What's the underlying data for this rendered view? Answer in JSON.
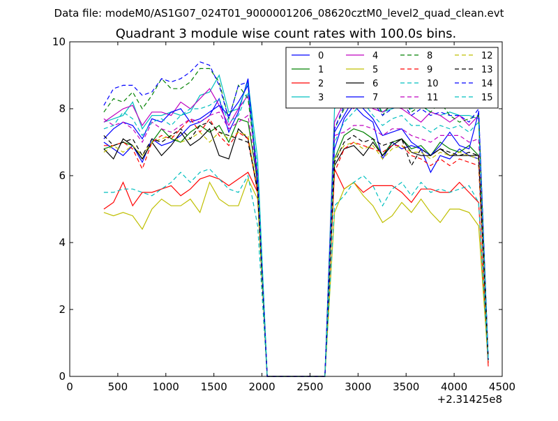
{
  "chart_data": {
    "type": "line",
    "suptitle": "Data file: modeM0/AS1G07_024T01_9000001206_08620cztM0_level2_quad_clean.evt",
    "title": "Quadrant 3 module wise count rates with 100.0s bins.",
    "xlabel": "",
    "ylabel": "",
    "xlim": [
      0,
      4500
    ],
    "ylim": [
      0,
      10
    ],
    "x_offset_label": "+2.31425e8",
    "x_ticks": [
      0,
      500,
      1000,
      1500,
      2000,
      2500,
      3000,
      3500,
      4000,
      4500
    ],
    "y_ticks": [
      0,
      2,
      4,
      6,
      8,
      10
    ],
    "x_tick_labels": [
      "0",
      "500",
      "1000",
      "1500",
      "2000",
      "2500",
      "3000",
      "3500",
      "4000",
      "4500"
    ],
    "y_tick_labels": [
      "0",
      "2",
      "4",
      "6",
      "8",
      "10"
    ],
    "grid": false,
    "legend_position": "top-right",
    "x": [
      355,
      455,
      555,
      655,
      755,
      855,
      955,
      1055,
      1155,
      1255,
      1355,
      1455,
      1555,
      1655,
      1755,
      1855,
      1955,
      2055,
      2155,
      2255,
      2355,
      2455,
      2555,
      2655,
      2755,
      2855,
      2955,
      3055,
      3155,
      3255,
      3355,
      3455,
      3555,
      3655,
      3755,
      3855,
      3955,
      4055,
      4155,
      4255,
      4355
    ],
    "series": [
      {
        "name": "0",
        "color": "#0000ff",
        "dash": "solid",
        "values": [
          7.0,
          6.8,
          6.6,
          6.9,
          6.4,
          7.1,
          6.9,
          7.0,
          7.2,
          7.5,
          7.6,
          7.8,
          8.3,
          7.3,
          7.9,
          8.9,
          5.6,
          0,
          0,
          0,
          0,
          0,
          0,
          0,
          6.8,
          7.7,
          8.1,
          7.8,
          7.6,
          6.5,
          7.0,
          6.8,
          6.9,
          6.8,
          6.1,
          6.6,
          6.5,
          6.8,
          6.6,
          6.5,
          0.5
        ]
      },
      {
        "name": "1",
        "color": "#008000",
        "dash": "solid",
        "values": [
          6.8,
          6.9,
          7.0,
          6.9,
          6.5,
          7.0,
          7.4,
          7.1,
          7.0,
          7.3,
          7.5,
          7.3,
          7.5,
          7.0,
          7.7,
          7.6,
          5.8,
          0,
          0,
          0,
          0,
          0,
          0,
          0,
          6.5,
          7.2,
          7.4,
          7.3,
          7.1,
          6.6,
          7.0,
          7.1,
          6.8,
          6.9,
          6.6,
          7.0,
          6.8,
          6.7,
          6.9,
          6.6,
          0.5
        ]
      },
      {
        "name": "2",
        "color": "#ff0000",
        "dash": "solid",
        "values": [
          5.0,
          5.2,
          5.8,
          5.1,
          5.5,
          5.5,
          5.6,
          5.7,
          5.4,
          5.6,
          5.9,
          6.0,
          5.9,
          5.7,
          5.9,
          6.1,
          5.5,
          0,
          0,
          0,
          0,
          0,
          0,
          0,
          6.2,
          5.6,
          5.8,
          5.5,
          5.7,
          5.7,
          5.7,
          5.5,
          5.2,
          5.6,
          5.6,
          5.5,
          5.5,
          5.8,
          5.5,
          5.2,
          0.3
        ]
      },
      {
        "name": "3",
        "color": "#00bfbf",
        "dash": "solid",
        "values": [
          7.6,
          7.7,
          7.8,
          8.2,
          7.4,
          7.8,
          7.8,
          7.9,
          7.8,
          7.9,
          8.4,
          8.5,
          9.0,
          7.9,
          8.0,
          8.8,
          6.5,
          0,
          0,
          0,
          0,
          0,
          0,
          0,
          8.0,
          8.3,
          8.3,
          8.5,
          8.3,
          7.9,
          8.0,
          8.1,
          8.0,
          8.1,
          7.9,
          7.8,
          7.9,
          7.8,
          7.8,
          7.7,
          0.5
        ]
      },
      {
        "name": "4",
        "color": "#bf00bf",
        "dash": "solid",
        "values": [
          7.6,
          7.8,
          8.0,
          8.1,
          7.5,
          7.9,
          7.9,
          7.8,
          8.2,
          8.0,
          8.3,
          8.6,
          8.1,
          7.5,
          8.0,
          8.4,
          6.0,
          0,
          0,
          0,
          0,
          0,
          0,
          0,
          7.6,
          8.2,
          8.0,
          8.3,
          8.0,
          7.9,
          8.1,
          8.0,
          7.8,
          7.6,
          7.9,
          7.8,
          7.6,
          7.8,
          7.5,
          7.8,
          0.5
        ]
      },
      {
        "name": "5",
        "color": "#bfbf00",
        "dash": "solid",
        "values": [
          4.9,
          4.8,
          4.9,
          4.8,
          4.4,
          5.0,
          5.3,
          5.1,
          5.1,
          5.3,
          4.9,
          5.8,
          5.3,
          5.1,
          5.1,
          5.9,
          5.3,
          0,
          0,
          0,
          0,
          0,
          0,
          0,
          4.9,
          5.6,
          5.8,
          5.4,
          5.1,
          4.6,
          4.8,
          5.2,
          4.9,
          5.3,
          4.9,
          4.6,
          5.0,
          5.0,
          4.9,
          4.5,
          0.4
        ]
      },
      {
        "name": "6",
        "color": "#000000",
        "dash": "solid",
        "values": [
          6.8,
          6.5,
          7.1,
          6.9,
          6.5,
          7.0,
          6.6,
          6.9,
          7.3,
          6.9,
          7.1,
          7.4,
          6.6,
          6.5,
          7.4,
          7.1,
          5.5,
          0,
          0,
          0,
          0,
          0,
          0,
          0,
          6.3,
          6.8,
          6.9,
          6.6,
          7.0,
          6.6,
          6.9,
          7.1,
          6.7,
          6.6,
          6.6,
          6.8,
          6.6,
          6.6,
          6.6,
          6.6,
          0.5
        ]
      },
      {
        "name": "7",
        "color": "#0000ff",
        "dash": "solid",
        "values": [
          7.1,
          7.4,
          7.6,
          7.5,
          7.1,
          7.7,
          7.6,
          7.9,
          8.0,
          7.6,
          7.7,
          7.9,
          8.1,
          7.8,
          8.2,
          8.7,
          5.8,
          0,
          0,
          0,
          0,
          0,
          0,
          0,
          7.3,
          7.8,
          8.3,
          8.0,
          7.7,
          7.2,
          7.3,
          7.4,
          7.0,
          6.8,
          6.6,
          6.9,
          7.3,
          6.9,
          6.8,
          7.9,
          0.5
        ]
      },
      {
        "name": "8",
        "color": "#008000",
        "dash": "dash",
        "values": [
          7.9,
          8.3,
          8.2,
          8.5,
          8.0,
          8.4,
          8.9,
          8.6,
          8.6,
          8.8,
          9.2,
          9.2,
          8.8,
          7.7,
          8.7,
          8.3,
          6.0,
          0,
          0,
          0,
          0,
          0,
          0,
          0,
          7.4,
          8.0,
          8.6,
          8.3,
          8.5,
          7.8,
          8.2,
          8.4,
          7.9,
          8.1,
          7.9,
          8.2,
          7.8,
          7.6,
          7.7,
          7.8,
          0.5
        ]
      },
      {
        "name": "9",
        "color": "#ff0000",
        "dash": "dash",
        "values": [
          6.9,
          6.9,
          7.0,
          6.8,
          6.2,
          7.0,
          7.2,
          7.1,
          7.4,
          7.7,
          7.3,
          7.7,
          7.2,
          6.9,
          7.3,
          7.1,
          5.5,
          0,
          0,
          0,
          0,
          0,
          0,
          0,
          6.1,
          6.8,
          7.0,
          6.9,
          6.8,
          6.7,
          6.9,
          6.9,
          6.6,
          6.5,
          6.3,
          6.5,
          6.3,
          6.5,
          6.4,
          6.3,
          0.4
        ]
      },
      {
        "name": "10",
        "color": "#00bfbf",
        "dash": "dash",
        "values": [
          5.5,
          5.5,
          5.6,
          5.6,
          5.5,
          5.4,
          5.6,
          5.8,
          6.1,
          5.8,
          6.1,
          6.2,
          5.9,
          5.6,
          5.5,
          6.0,
          4.5,
          0,
          0,
          0,
          0,
          0,
          0,
          0,
          5.1,
          5.4,
          5.8,
          6.0,
          5.7,
          5.1,
          5.6,
          5.8,
          5.4,
          5.8,
          5.5,
          5.6,
          5.5,
          5.6,
          5.7,
          5.2,
          0.4
        ]
      },
      {
        "name": "11",
        "color": "#bf00bf",
        "dash": "dash",
        "values": [
          7.7,
          7.5,
          7.6,
          7.4,
          7.0,
          7.6,
          7.4,
          7.3,
          7.5,
          7.7,
          7.6,
          7.8,
          7.9,
          7.4,
          7.6,
          7.8,
          5.9,
          0,
          0,
          0,
          0,
          0,
          0,
          0,
          7.2,
          7.3,
          7.5,
          7.5,
          7.4,
          7.2,
          7.4,
          7.4,
          7.2,
          7.1,
          7.0,
          7.2,
          7.2,
          7.2,
          7.0,
          7.1,
          0.5
        ]
      },
      {
        "name": "12",
        "color": "#bfbf00",
        "dash": "dash",
        "values": [
          6.7,
          6.9,
          6.7,
          6.9,
          6.6,
          7.0,
          7.1,
          7.2,
          7.0,
          7.1,
          7.3,
          7.0,
          7.3,
          7.1,
          7.3,
          7.2,
          5.6,
          0,
          0,
          0,
          0,
          0,
          0,
          0,
          6.5,
          6.9,
          7.0,
          6.8,
          6.9,
          6.5,
          6.8,
          6.9,
          6.7,
          6.7,
          6.5,
          6.7,
          6.6,
          6.7,
          6.6,
          6.5,
          0.5
        ]
      },
      {
        "name": "13",
        "color": "#000000",
        "dash": "dash",
        "values": [
          7.2,
          6.9,
          7.0,
          7.1,
          6.6,
          7.1,
          7.0,
          7.2,
          7.4,
          7.1,
          7.5,
          7.6,
          7.3,
          7.2,
          7.1,
          7.0,
          5.6,
          0,
          0,
          0,
          0,
          0,
          0,
          0,
          6.4,
          7.0,
          7.2,
          7.0,
          7.1,
          6.9,
          7.0,
          7.1,
          6.3,
          6.8,
          6.6,
          6.8,
          6.7,
          6.6,
          6.7,
          6.6,
          0.5
        ]
      },
      {
        "name": "14",
        "color": "#0000ff",
        "dash": "dash",
        "values": [
          8.1,
          8.6,
          8.7,
          8.7,
          8.4,
          8.5,
          8.9,
          8.8,
          8.9,
          9.1,
          9.4,
          9.3,
          8.7,
          7.7,
          8.7,
          8.8,
          5.9,
          0,
          0,
          0,
          0,
          0,
          0,
          0,
          7.4,
          8.1,
          8.4,
          8.6,
          8.2,
          7.8,
          8.0,
          8.2,
          7.8,
          8.0,
          7.8,
          7.9,
          7.8,
          7.8,
          7.6,
          8.0,
          0.5
        ]
      },
      {
        "name": "15",
        "color": "#00bfbf",
        "dash": "dash",
        "values": [
          7.4,
          7.5,
          7.9,
          7.7,
          7.2,
          7.6,
          7.7,
          7.5,
          7.8,
          8.0,
          8.0,
          8.1,
          8.3,
          7.6,
          7.8,
          8.5,
          6.2,
          0,
          0,
          0,
          0,
          0,
          0,
          0,
          7.0,
          7.6,
          7.9,
          8.2,
          7.8,
          7.5,
          7.7,
          7.8,
          7.5,
          7.5,
          7.3,
          7.5,
          7.4,
          7.5,
          7.3,
          7.6,
          0.5
        ]
      }
    ]
  }
}
